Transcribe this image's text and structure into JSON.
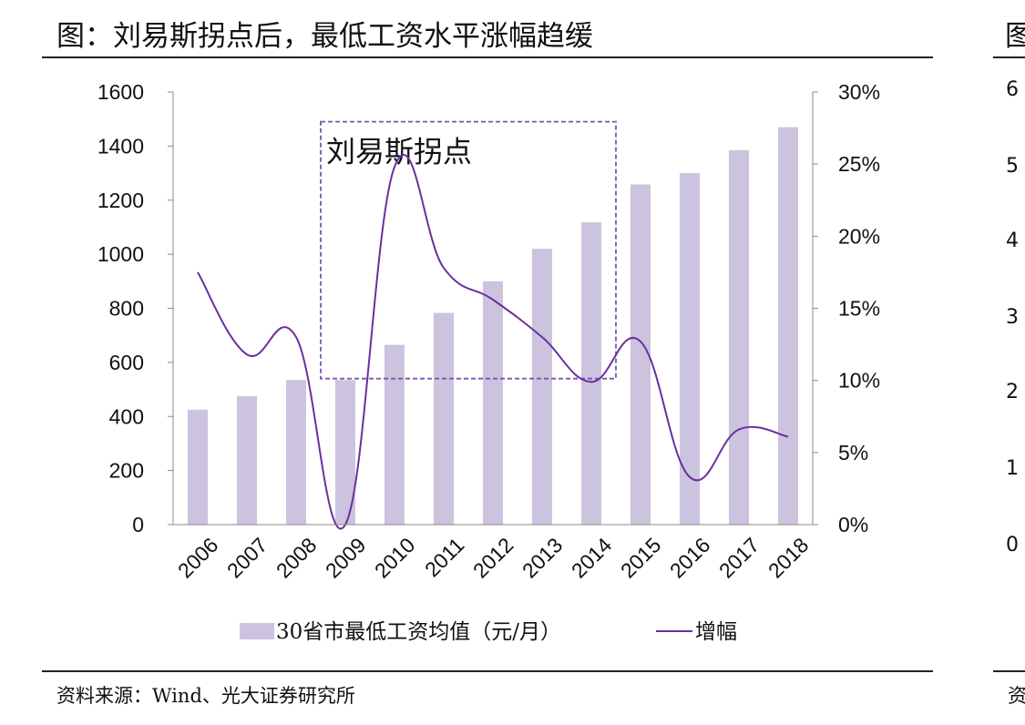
{
  "title": "图：刘易斯拐点后，最低工资水平涨幅趋缓",
  "right_panel": {
    "title_fragment": "图",
    "ytick_fragments": [
      "6",
      "5",
      "4",
      "3",
      "2",
      "1",
      "0"
    ],
    "source_fragment": "资"
  },
  "source": "资料来源：Wind、光大证券研究所",
  "chart_data": {
    "type": "bar+line",
    "categories": [
      "2006",
      "2007",
      "2008",
      "2009",
      "2010",
      "2011",
      "2012",
      "2013",
      "2014",
      "2015",
      "2016",
      "2017",
      "2018"
    ],
    "series": [
      {
        "name": "30省市最低工资均值（元/月）",
        "type": "bar",
        "axis": "left",
        "color": "#ccc3de",
        "values": [
          425,
          475,
          535,
          535,
          665,
          783,
          900,
          1020,
          1118,
          1258,
          1300,
          1385,
          1470
        ]
      },
      {
        "name": "增幅",
        "type": "line",
        "axis": "right",
        "color": "#6b2fa0",
        "values": [
          0.175,
          0.118,
          0.13,
          0.0,
          0.248,
          0.178,
          0.156,
          0.13,
          0.099,
          0.127,
          0.033,
          0.066,
          0.061
        ]
      }
    ],
    "y_left": {
      "min": 0,
      "max": 1600,
      "ticks": [
        "0",
        "200",
        "400",
        "600",
        "800",
        "1000",
        "1200",
        "1400",
        "1600"
      ]
    },
    "y_right": {
      "min": 0,
      "max": 0.3,
      "ticks": [
        "0%",
        "5%",
        "10%",
        "15%",
        "20%",
        "25%",
        "30%"
      ]
    },
    "annotation": {
      "text": "刘易斯拐点",
      "from": "2009",
      "to": "2014",
      "y_top": 1490,
      "y_bottom": 540,
      "style": "dashed-box"
    },
    "legend": "bottom",
    "grid": false
  }
}
